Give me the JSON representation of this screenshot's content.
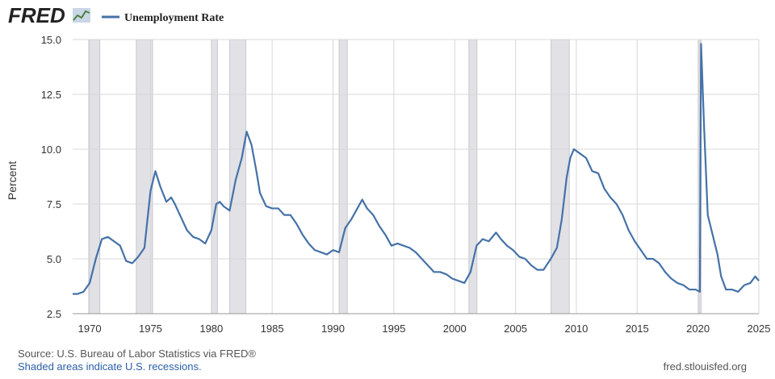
{
  "logo": "FRED",
  "source": "Source: U.S. Bureau of Labor Statistics via FRED®",
  "note": "Shaded areas indicate U.S. recessions.",
  "site": "fred.stlouisfed.org",
  "chart_data": {
    "type": "line",
    "ylabel": "Percent",
    "xlim": [
      1968.6,
      2025.0
    ],
    "ylim": [
      2.5,
      15
    ],
    "xticks": [
      1970,
      1975,
      1980,
      1985,
      1990,
      1995,
      2000,
      2005,
      2010,
      2015,
      2020,
      2025
    ],
    "yticks": [
      2.5,
      {
        "value": 5,
        "label": "5.0"
      },
      7.5,
      {
        "value": 10,
        "label": "10.0"
      },
      12.5,
      {
        "value": 15,
        "label": "15.0"
      }
    ],
    "grid": true,
    "recession_color": "#e1e1e6",
    "recessions": [
      [
        1969.92,
        1970.83
      ],
      [
        1973.83,
        1975.17
      ],
      [
        1980.0,
        1980.5
      ],
      [
        1981.5,
        1982.83
      ],
      [
        1990.5,
        1991.17
      ],
      [
        2001.17,
        2001.83
      ],
      [
        2007.92,
        2009.42
      ],
      [
        2020.08,
        2020.25
      ]
    ],
    "x": [
      1968.6,
      1969.0,
      1969.5,
      1970.0,
      1970.5,
      1971.0,
      1971.5,
      1972.0,
      1972.5,
      1973.0,
      1973.5,
      1974.0,
      1974.5,
      1975.0,
      1975.4,
      1975.8,
      1976.3,
      1976.7,
      1977.0,
      1977.5,
      1978.0,
      1978.5,
      1979.0,
      1979.5,
      1980.0,
      1980.4,
      1980.7,
      1981.0,
      1981.5,
      1982.0,
      1982.5,
      1982.9,
      1983.3,
      1983.7,
      1984.0,
      1984.5,
      1985.0,
      1985.5,
      1986.0,
      1986.5,
      1987.0,
      1987.5,
      1988.0,
      1988.5,
      1989.0,
      1989.5,
      1990.0,
      1990.5,
      1991.0,
      1991.5,
      1992.0,
      1992.4,
      1992.8,
      1993.3,
      1993.8,
      1994.3,
      1994.8,
      1995.3,
      1995.8,
      1996.3,
      1996.8,
      1997.3,
      1997.8,
      1998.3,
      1998.8,
      1999.3,
      1999.8,
      2000.3,
      2000.8,
      2001.3,
      2001.8,
      2002.3,
      2002.8,
      2003.4,
      2003.8,
      2004.3,
      2004.8,
      2005.3,
      2005.8,
      2006.3,
      2006.8,
      2007.3,
      2007.9,
      2008.4,
      2008.8,
      2009.2,
      2009.5,
      2009.8,
      2010.3,
      2010.8,
      2011.3,
      2011.8,
      2012.3,
      2012.8,
      2013.3,
      2013.8,
      2014.3,
      2014.8,
      2015.3,
      2015.8,
      2016.3,
      2016.8,
      2017.3,
      2017.8,
      2018.3,
      2018.8,
      2019.3,
      2019.8,
      2020.15,
      2020.25,
      2020.5,
      2020.8,
      2021.2,
      2021.6,
      2021.9,
      2022.3,
      2022.8,
      2023.3,
      2023.8,
      2024.3,
      2024.7,
      2025.0
    ],
    "series": [
      {
        "name": "Unemployment Rate",
        "color": "#4572a7",
        "values": [
          3.4,
          3.4,
          3.5,
          3.9,
          5.0,
          5.9,
          6.0,
          5.8,
          5.6,
          4.9,
          4.8,
          5.1,
          5.5,
          8.1,
          9.0,
          8.3,
          7.6,
          7.8,
          7.5,
          6.9,
          6.3,
          6.0,
          5.9,
          5.7,
          6.3,
          7.5,
          7.6,
          7.4,
          7.2,
          8.6,
          9.6,
          10.8,
          10.2,
          9.0,
          8.0,
          7.4,
          7.3,
          7.3,
          7.0,
          7.0,
          6.6,
          6.1,
          5.7,
          5.4,
          5.3,
          5.2,
          5.4,
          5.3,
          6.4,
          6.8,
          7.3,
          7.7,
          7.3,
          7.0,
          6.5,
          6.1,
          5.6,
          5.7,
          5.6,
          5.5,
          5.3,
          5.0,
          4.7,
          4.4,
          4.4,
          4.3,
          4.1,
          4.0,
          3.9,
          4.4,
          5.6,
          5.9,
          5.8,
          6.2,
          5.9,
          5.6,
          5.4,
          5.1,
          5.0,
          4.7,
          4.5,
          4.5,
          5.0,
          5.5,
          6.8,
          8.7,
          9.6,
          10.0,
          9.8,
          9.6,
          9.0,
          8.9,
          8.2,
          7.8,
          7.5,
          7.0,
          6.3,
          5.8,
          5.4,
          5.0,
          5.0,
          4.8,
          4.4,
          4.1,
          3.9,
          3.8,
          3.6,
          3.6,
          3.5,
          14.8,
          11.0,
          7.0,
          6.1,
          5.2,
          4.2,
          3.6,
          3.6,
          3.5,
          3.8,
          3.9,
          4.2,
          4.0
        ]
      }
    ]
  }
}
